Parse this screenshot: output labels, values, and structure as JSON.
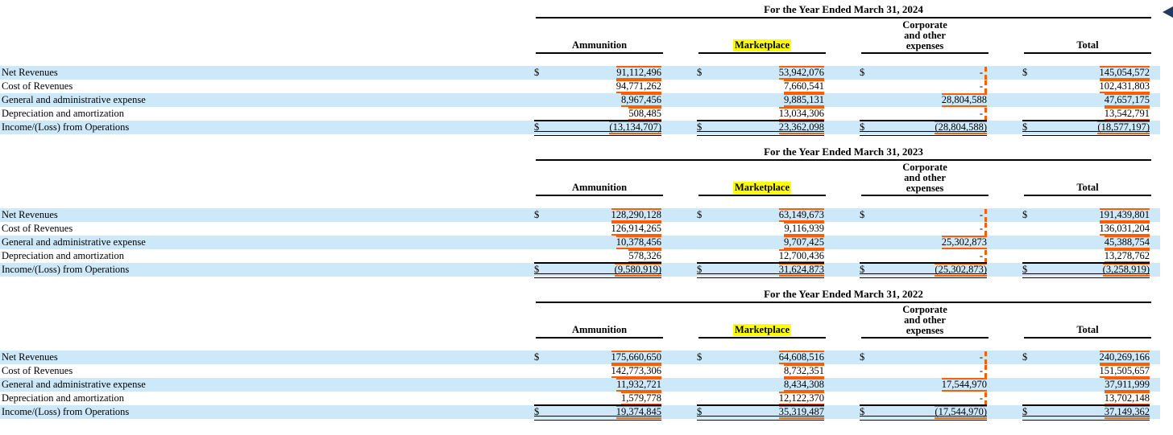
{
  "colors": {
    "stripe_blue": "#cde9f9",
    "fact_highlight_orange": "#ff5e00",
    "search_highlight_yellow": "#ffff00",
    "nav_arrow_navy": "#1f3a63",
    "rule_black": "#000000"
  },
  "icons": {
    "nav_arrow": "left-triangle-icon"
  },
  "column_headers": [
    "Ammunition",
    "Marketplace",
    "Corporate and other expenses",
    "Total"
  ],
  "tables": [
    {
      "title": "For the Year Ended March 31, 2024",
      "rows": [
        {
          "label": "Net Revenues",
          "dollar": true,
          "total": false,
          "values": [
            "91,112,496",
            "53,942,076",
            "-",
            "145,054,572"
          ]
        },
        {
          "label": "Cost of Revenues",
          "dollar": false,
          "total": false,
          "values": [
            "94,771,262",
            "7,660,541",
            "-",
            "102,431,803"
          ]
        },
        {
          "label": "General and administrative expense",
          "dollar": false,
          "total": false,
          "values": [
            "8,967,456",
            "9,885,131",
            "28,804,588",
            "47,657,175"
          ]
        },
        {
          "label": "Depreciation and amortization",
          "dollar": false,
          "total": false,
          "values": [
            "508,485",
            "13,034,306",
            "-",
            "13,542,791"
          ]
        },
        {
          "label": "Income/(Loss) from Operations",
          "dollar": true,
          "total": true,
          "values": [
            "(13,134,707)",
            "23,362,098",
            "(28,804,588)",
            "(18,577,197)"
          ]
        }
      ]
    },
    {
      "title": "For the Year Ended March 31, 2023",
      "rows": [
        {
          "label": "Net Revenues",
          "dollar": true,
          "total": false,
          "values": [
            "128,290,128",
            "63,149,673",
            "-",
            "191,439,801"
          ]
        },
        {
          "label": "Cost of Revenues",
          "dollar": false,
          "total": false,
          "values": [
            "126,914,265",
            "9,116,939",
            "-",
            "136,031,204"
          ]
        },
        {
          "label": "General and administrative expense",
          "dollar": false,
          "total": false,
          "values": [
            "10,378,456",
            "9,707,425",
            "25,302,873",
            "45,388,754"
          ]
        },
        {
          "label": "Depreciation and amortization",
          "dollar": false,
          "total": false,
          "values": [
            "578,326",
            "12,700,436",
            "-",
            "13,278,762"
          ]
        },
        {
          "label": "Income/(Loss) from Operations",
          "dollar": true,
          "total": true,
          "values": [
            "(9,580,919)",
            "31,624,873",
            "(25,302,873)",
            "(3,258,919)"
          ]
        }
      ]
    },
    {
      "title": "For the Year Ended March 31, 2022",
      "rows": [
        {
          "label": "Net Revenues",
          "dollar": true,
          "total": false,
          "values": [
            "175,660,650",
            "64,608,516",
            "-",
            "240,269,166"
          ]
        },
        {
          "label": "Cost of Revenues",
          "dollar": false,
          "total": false,
          "values": [
            "142,773,306",
            "8,732,351",
            "-",
            "151,505,657"
          ]
        },
        {
          "label": "General and administrative expense",
          "dollar": false,
          "total": false,
          "values": [
            "11,932,721",
            "8,434,308",
            "17,544,970",
            "37,911,999"
          ]
        },
        {
          "label": "Depreciation and amortization",
          "dollar": false,
          "total": false,
          "values": [
            "1,579,778",
            "12,122,370",
            "-",
            "13,702,148"
          ]
        },
        {
          "label": "Income/(Loss) from Operations",
          "dollar": true,
          "total": true,
          "values": [
            "19,374,845",
            "35,319,487",
            "(17,544,970)",
            "37,149,362"
          ]
        }
      ]
    }
  ]
}
